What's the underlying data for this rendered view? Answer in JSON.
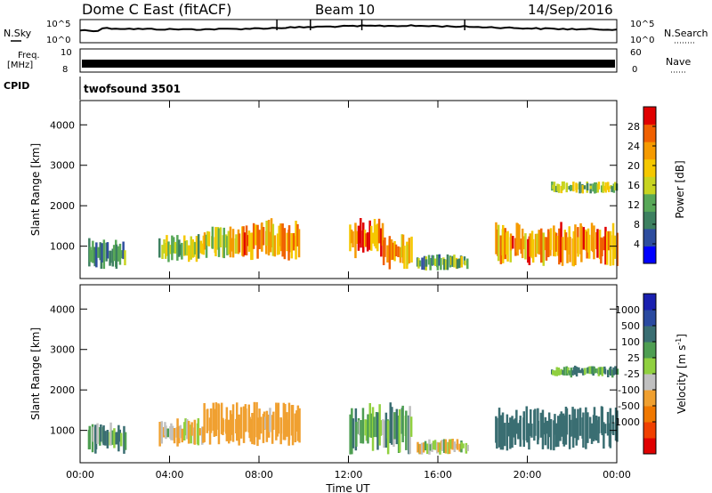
{
  "header": {
    "station": "Dome C East (fitACF)",
    "beam": "Beam 10",
    "date": "14/Sep/2016"
  },
  "strips": {
    "nsky_label": "N.Sky",
    "nsky_ticks": [
      "10^5",
      "10^0"
    ],
    "nsearch_label": "N.Search",
    "nsearch_ticks": [
      "10^5",
      "10^0"
    ],
    "freq_label": "Freq.",
    "freq_unit": "[MHz]",
    "freq_ticks": [
      "10",
      "8"
    ],
    "nave_label": "Nave",
    "nave_ticks": [
      "60",
      "0"
    ],
    "cpid_label": "CPID",
    "cpid_value": "twofsound 3501"
  },
  "colors": {
    "power_scale": [
      "#0000ff",
      "#2e4d9e",
      "#3d8060",
      "#58a858",
      "#c8d420",
      "#f5c800",
      "#f59a00",
      "#f06000",
      "#e00000"
    ],
    "velocity_scale": [
      "#e00000",
      "#f04000",
      "#f07800",
      "#f0a030",
      "#c0c0c0",
      "#90d040",
      "#4e9e52",
      "#3a6e72",
      "#2a4aa0",
      "#1a20b0"
    ]
  },
  "chart_data": [
    {
      "type": "heatmap",
      "panel": "power",
      "ylabel": "Slant Range [km]",
      "yticks": [
        1000,
        2000,
        3000,
        4000
      ],
      "ylim": [
        200,
        4600
      ],
      "xlim": [
        0,
        24
      ],
      "colorbar_label": "Power [dB]",
      "colorbar_ticks": [
        4,
        8,
        12,
        16,
        20,
        24,
        28
      ],
      "colorbar_range": [
        0,
        32
      ],
      "regions": [
        {
          "t0": 0.3,
          "t1": 2.0,
          "r0": 400,
          "r1": 1200,
          "level": 10
        },
        {
          "t0": 3.5,
          "t1": 5.5,
          "r0": 600,
          "r1": 1300,
          "level": 14
        },
        {
          "t0": 5.5,
          "t1": 7.0,
          "r0": 700,
          "r1": 1500,
          "level": 18
        },
        {
          "t0": 7.0,
          "t1": 9.8,
          "r0": 600,
          "r1": 1700,
          "level": 24
        },
        {
          "t0": 12.0,
          "t1": 13.5,
          "r0": 700,
          "r1": 1700,
          "level": 25
        },
        {
          "t0": 13.5,
          "t1": 14.8,
          "r0": 400,
          "r1": 1300,
          "level": 22
        },
        {
          "t0": 15.0,
          "t1": 17.3,
          "r0": 400,
          "r1": 800,
          "level": 12
        },
        {
          "t0": 18.5,
          "t1": 24.0,
          "r0": 500,
          "r1": 1600,
          "level": 24
        },
        {
          "t0": 21.0,
          "t1": 24.0,
          "r0": 2300,
          "r1": 2600,
          "level": 14
        }
      ]
    },
    {
      "type": "heatmap",
      "panel": "velocity",
      "ylabel": "Slant Range [km]",
      "yticks": [
        1000,
        2000,
        3000,
        4000
      ],
      "ylim": [
        200,
        4600
      ],
      "xlim": [
        0,
        24
      ],
      "xticks": [
        "00:00",
        "04:00",
        "08:00",
        "12:00",
        "16:00",
        "20:00",
        "00:00"
      ],
      "xlabel": "Time UT",
      "colorbar_label": "Velocity [m s^-1]",
      "colorbar_ticks": [
        1000,
        500,
        100,
        25,
        -25,
        -100,
        -500,
        -1000
      ],
      "regions": [
        {
          "t0": 0.3,
          "t1": 2.0,
          "r0": 400,
          "r1": 1200,
          "velocity": 50
        },
        {
          "t0": 3.5,
          "t1": 5.5,
          "r0": 600,
          "r1": 1300,
          "velocity": -80
        },
        {
          "t0": 5.5,
          "t1": 9.8,
          "r0": 600,
          "r1": 1700,
          "velocity": -200
        },
        {
          "t0": 12.0,
          "t1": 14.8,
          "r0": 400,
          "r1": 1700,
          "velocity": 60
        },
        {
          "t0": 15.0,
          "t1": 17.3,
          "r0": 400,
          "r1": 800,
          "velocity": -60
        },
        {
          "t0": 18.5,
          "t1": 24.0,
          "r0": 500,
          "r1": 1600,
          "velocity": 300
        },
        {
          "t0": 21.0,
          "t1": 24.0,
          "r0": 2300,
          "r1": 2600,
          "velocity": 80
        }
      ]
    }
  ]
}
